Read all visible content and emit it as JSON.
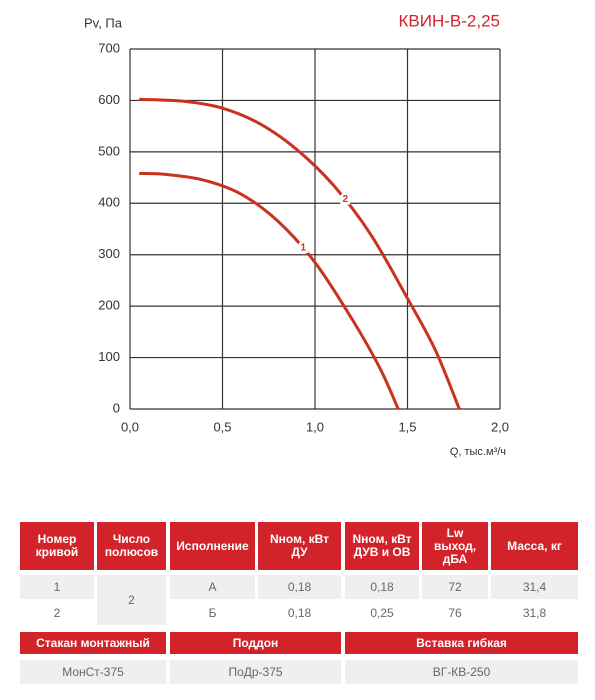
{
  "chart_data": {
    "type": "line",
    "title": "КВИН-В-2,25",
    "y_label": "Pv, Па",
    "x_label": "Q, тыс.м³/ч",
    "xlim": [
      0,
      2
    ],
    "ylim": [
      0,
      700
    ],
    "xticks": [
      {
        "value": 0,
        "label": "0,0"
      },
      {
        "value": 0.5,
        "label": "0,5"
      },
      {
        "value": 1,
        "label": "1,0"
      },
      {
        "value": 1.5,
        "label": "1,5"
      },
      {
        "value": 2,
        "label": "2,0"
      }
    ],
    "yticks": [
      0,
      100,
      200,
      300,
      400,
      500,
      600,
      700
    ],
    "grid": true,
    "series": [
      {
        "name": "1",
        "color": "#c9321f",
        "x": [
          0.05,
          0.2,
          0.4,
          0.6,
          0.8,
          1.0,
          1.2,
          1.35,
          1.45
        ],
        "values": [
          458,
          456,
          445,
          418,
          365,
          285,
          175,
          80,
          0
        ]
      },
      {
        "name": "2",
        "color": "#c9321f",
        "x": [
          0.05,
          0.3,
          0.5,
          0.7,
          0.9,
          1.1,
          1.3,
          1.5,
          1.65,
          1.78
        ],
        "values": [
          602,
          598,
          585,
          555,
          505,
          435,
          340,
          215,
          115,
          0
        ]
      }
    ]
  },
  "table": {
    "header": [
      "Номер кривой",
      "Число полюсов",
      "Исполнение",
      "Nном, кВт ДУ",
      "Nном, кВт ДУВ и ОВ",
      "Lw выход, дБА",
      "Масса, кг"
    ],
    "rows": [
      [
        "1",
        "2",
        "А",
        "0,18",
        "0,18",
        "72",
        "31,4"
      ],
      [
        "2",
        "Б",
        "0,18",
        "0,25",
        "76",
        "31,8"
      ]
    ]
  },
  "accessories": {
    "header": [
      "Стакан монтажный",
      "Поддон",
      "Вставка гибкая"
    ],
    "values": [
      "МонСт-375",
      "ПоДр-375",
      "ВГ-КВ-250"
    ]
  }
}
